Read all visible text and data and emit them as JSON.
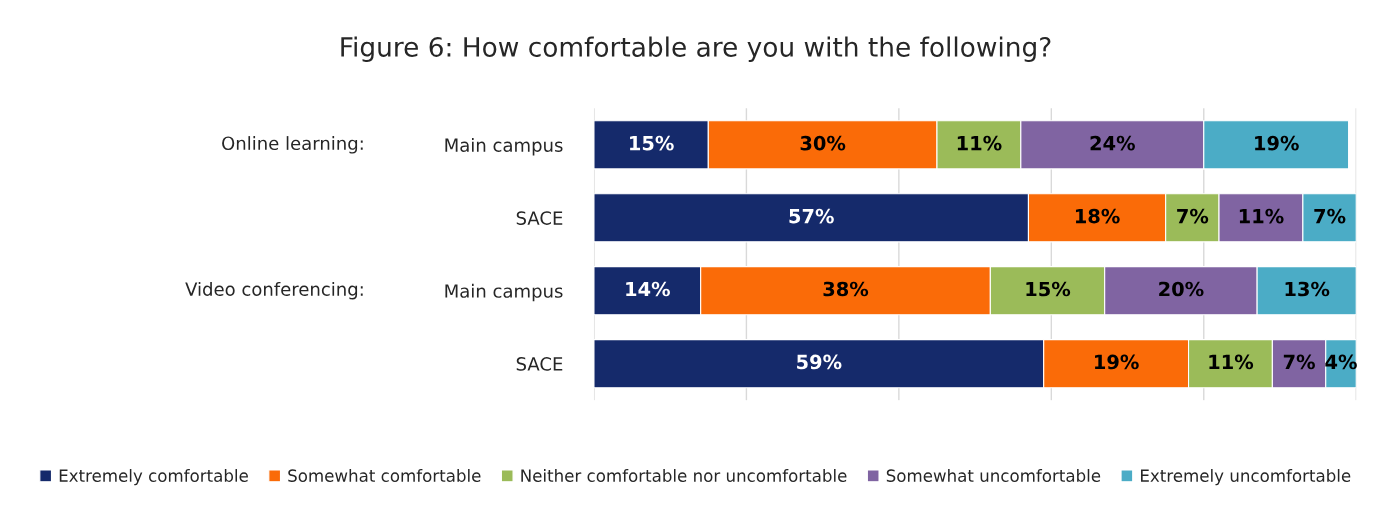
{
  "chart_data": {
    "type": "bar",
    "orientation": "horizontal",
    "stacked": true,
    "title": "Figure 6: How comfortable are you with the following?",
    "categories": [
      "Main campus",
      "SACE",
      "Main campus",
      "SACE"
    ],
    "annotations": [
      "Online learning:",
      "Video conferencing:"
    ],
    "series": [
      {
        "name": "Extremely comfortable",
        "color": "#152a6b",
        "values": [
          15,
          57,
          14,
          59
        ],
        "value_labels": [
          "15%",
          "57%",
          "14%",
          "59%"
        ]
      },
      {
        "name": "Somewhat comfortable",
        "color": "#fa6b08",
        "values": [
          30,
          18,
          38,
          19
        ],
        "value_labels": [
          "30%",
          "18%",
          "38%",
          "19%"
        ]
      },
      {
        "name": "Neither comfortable nor uncomfortable",
        "color": "#9bbb59",
        "values": [
          11,
          7,
          15,
          11
        ],
        "value_labels": [
          "11%",
          "7%",
          "15%",
          "11%"
        ]
      },
      {
        "name": "Somewhat uncomfortable",
        "color": "#8064a2",
        "values": [
          24,
          11,
          20,
          7
        ],
        "value_labels": [
          "24%",
          "11%",
          "20%",
          "7%"
        ]
      },
      {
        "name": "Extremely uncomfortable",
        "color": "#4bacc6",
        "values": [
          19,
          7,
          13,
          4
        ],
        "value_labels": [
          "19%",
          "7%",
          "13%",
          "4%"
        ]
      }
    ],
    "tick_labels": "y",
    "grid": "x",
    "legend": "bottom"
  }
}
